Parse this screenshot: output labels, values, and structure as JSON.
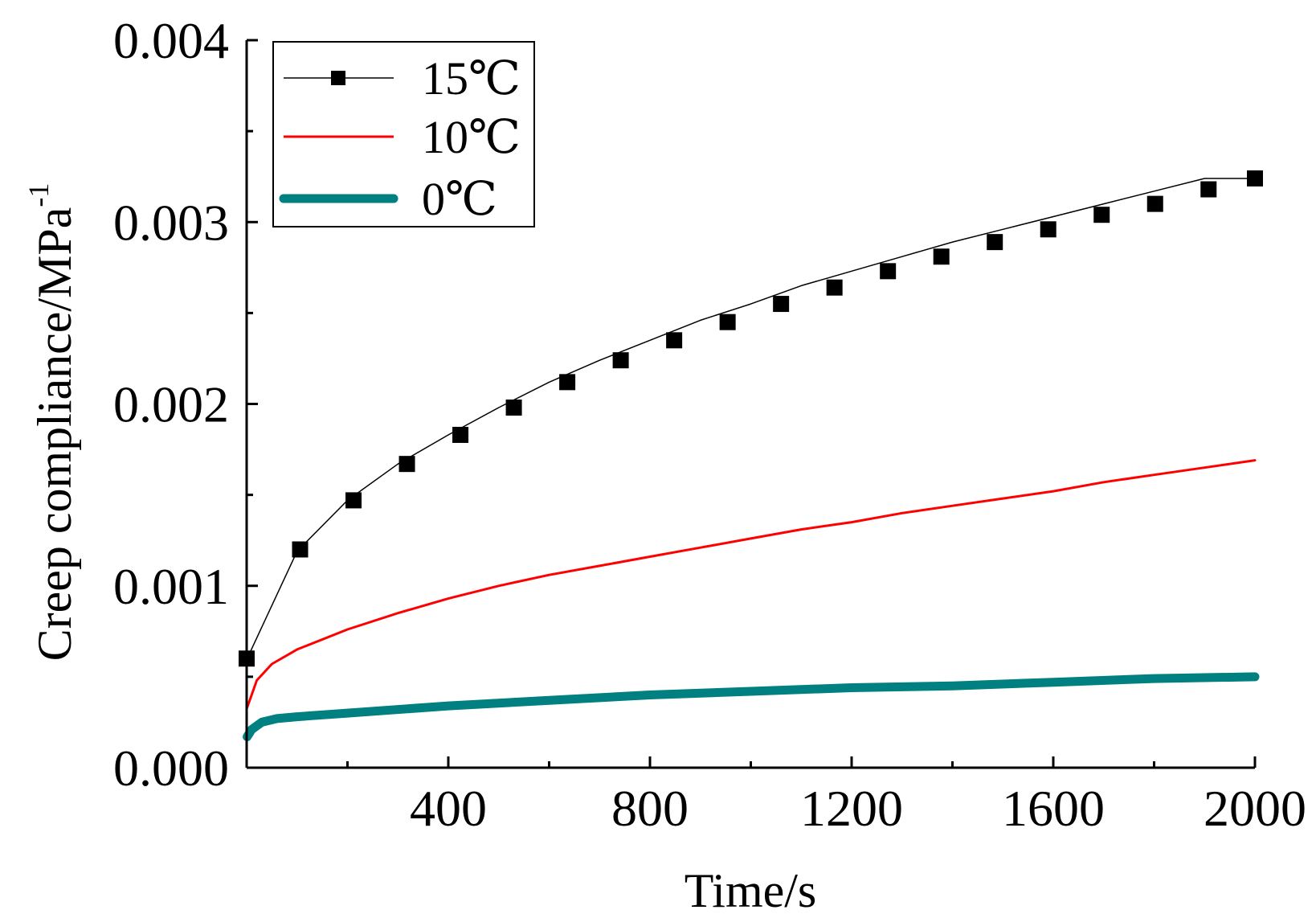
{
  "chart_data": {
    "type": "line",
    "xlabel": "Time/s",
    "ylabel": "Creep compliance/MPa",
    "ylabel_superscript": "-1",
    "xlim": [
      0,
      2000
    ],
    "ylim": [
      0,
      0.004
    ],
    "x_ticks": [
      400,
      800,
      1200,
      1600,
      2000
    ],
    "x_tick_labels": [
      "400",
      "800",
      "1200",
      "1600",
      "2000"
    ],
    "x_minor_ticks": [
      200,
      600,
      1000,
      1400,
      1800
    ],
    "y_ticks": [
      0,
      0.001,
      0.002,
      0.003,
      0.004
    ],
    "y_tick_labels": [
      "0.000",
      "0.001",
      "0.002",
      "0.003",
      "0.004"
    ],
    "legend_position": "top-left",
    "series": [
      {
        "name": "15℃",
        "color": "#000000",
        "style": "thin-line-square-markers",
        "x": [
          1,
          100,
          200,
          300,
          400,
          500,
          600,
          700,
          800,
          900,
          1000,
          1100,
          1200,
          1300,
          1400,
          1500,
          1600,
          1700,
          1800,
          1900,
          2000
        ],
        "values": [
          0.0006,
          0.00119,
          0.00147,
          0.00167,
          0.00183,
          0.00198,
          0.00212,
          0.00224,
          0.00235,
          0.00246,
          0.00255,
          0.00265,
          0.00273,
          0.00281,
          0.00289,
          0.00296,
          0.00303,
          0.0031,
          0.00317,
          0.00324,
          0.00324
        ],
        "markers_x": [
          0,
          106,
          212,
          318,
          424,
          530,
          636,
          742,
          848,
          954,
          1060,
          1166,
          1272,
          1378,
          1484,
          1590,
          1696,
          1802,
          1908,
          2000
        ],
        "markers_y": [
          0.0006,
          0.0012,
          0.00147,
          0.00167,
          0.00183,
          0.00198,
          0.00212,
          0.00224,
          0.00235,
          0.00245,
          0.00255,
          0.00264,
          0.00273,
          0.00281,
          0.00289,
          0.00296,
          0.00304,
          0.0031,
          0.00318,
          0.00324
        ]
      },
      {
        "name": "10℃",
        "color": "#ff0000",
        "style": "thin-line",
        "x": [
          1,
          20,
          50,
          100,
          200,
          300,
          400,
          500,
          600,
          700,
          800,
          900,
          1000,
          1100,
          1200,
          1300,
          1400,
          1500,
          1600,
          1700,
          1800,
          1900,
          2000
        ],
        "values": [
          0.00033,
          0.00048,
          0.00057,
          0.00065,
          0.00076,
          0.00085,
          0.00093,
          0.001,
          0.00106,
          0.00111,
          0.00116,
          0.00121,
          0.00126,
          0.00131,
          0.00135,
          0.0014,
          0.00144,
          0.00148,
          0.00152,
          0.00157,
          0.00161,
          0.00165,
          0.00169
        ]
      },
      {
        "name": "0℃",
        "color": "#008080",
        "style": "thick-line",
        "x": [
          1,
          10,
          30,
          60,
          100,
          200,
          400,
          600,
          800,
          1000,
          1200,
          1400,
          1600,
          1800,
          2000
        ],
        "values": [
          0.00017,
          0.00021,
          0.00025,
          0.00027,
          0.00028,
          0.0003,
          0.00034,
          0.00037,
          0.0004,
          0.00042,
          0.00044,
          0.00045,
          0.00047,
          0.00049,
          0.0005
        ]
      }
    ]
  }
}
